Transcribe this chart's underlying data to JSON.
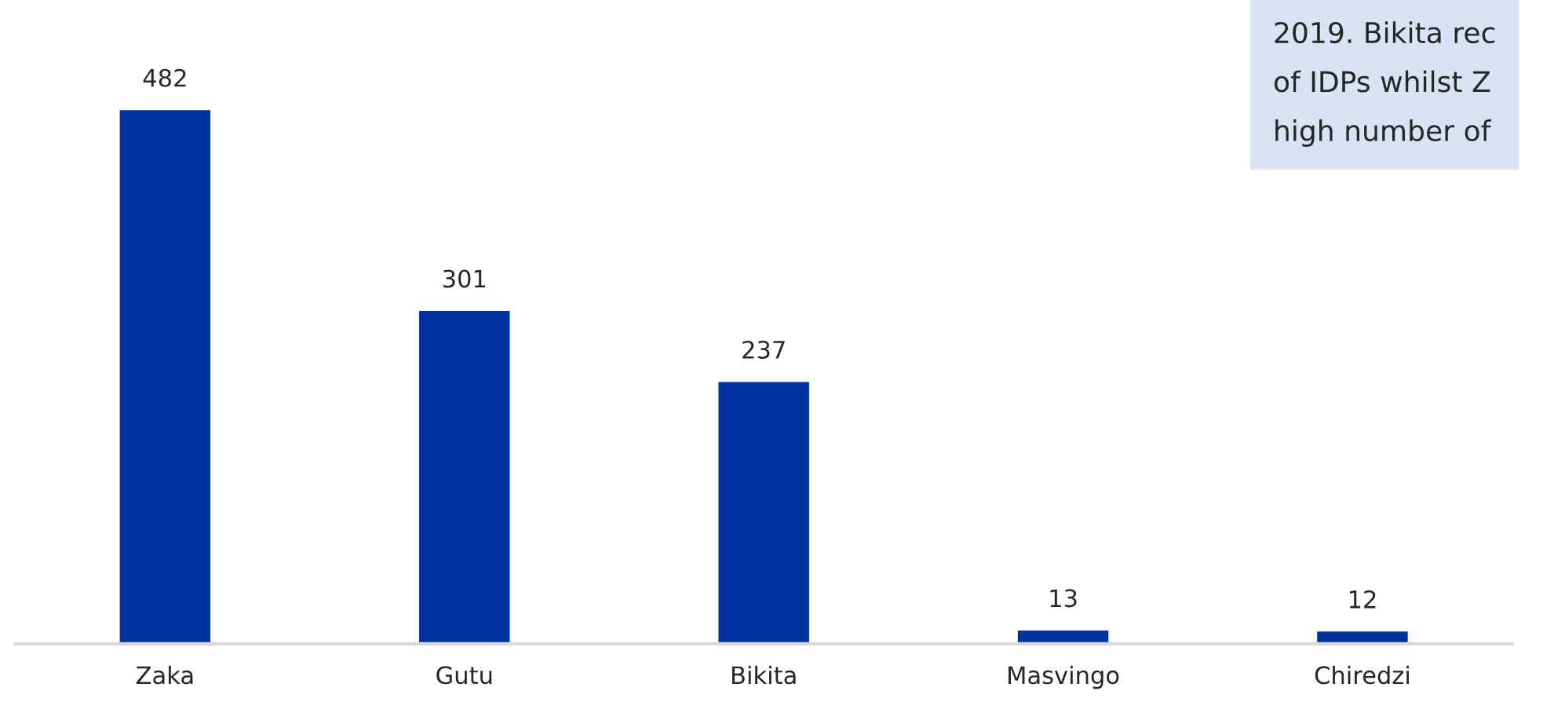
{
  "chart_data": {
    "type": "bar",
    "categories": [
      "Zaka",
      "Gutu",
      "Bikita",
      "Masvingo",
      "Chiredzi"
    ],
    "values": [
      482,
      301,
      237,
      13,
      12
    ],
    "color": "#0033a0",
    "data_labels": true,
    "grid": false,
    "legend": false,
    "tick_labels": "x",
    "annotations": [
      "2019. Bikita rec\nof IDPs whilst Z\nhigh number of"
    ]
  }
}
